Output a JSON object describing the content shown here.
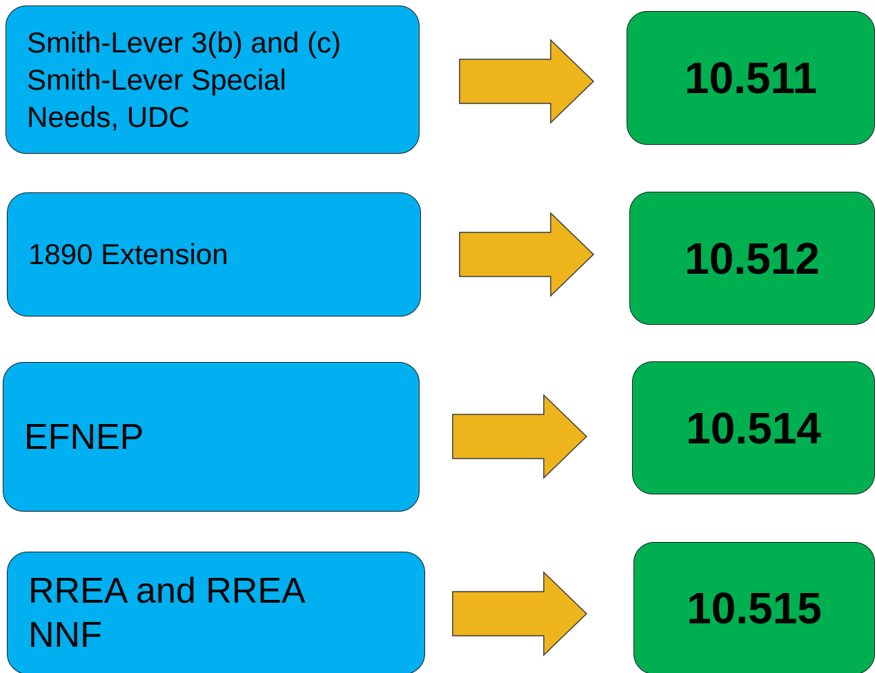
{
  "colors": {
    "program_box": "#00b0f0",
    "code_box": "#00b050",
    "arrow": "#eeb41c"
  },
  "rows": [
    {
      "program": "Smith-Lever 3(b) and (c)\nSmith-Lever Special\nNeeds, UDC",
      "code": "10.511"
    },
    {
      "program": "1890 Extension",
      "code": "10.512"
    },
    {
      "program": "EFNEP",
      "code": "10.514"
    },
    {
      "program": "RREA and RREA\nNNF",
      "code": "10.515"
    }
  ]
}
